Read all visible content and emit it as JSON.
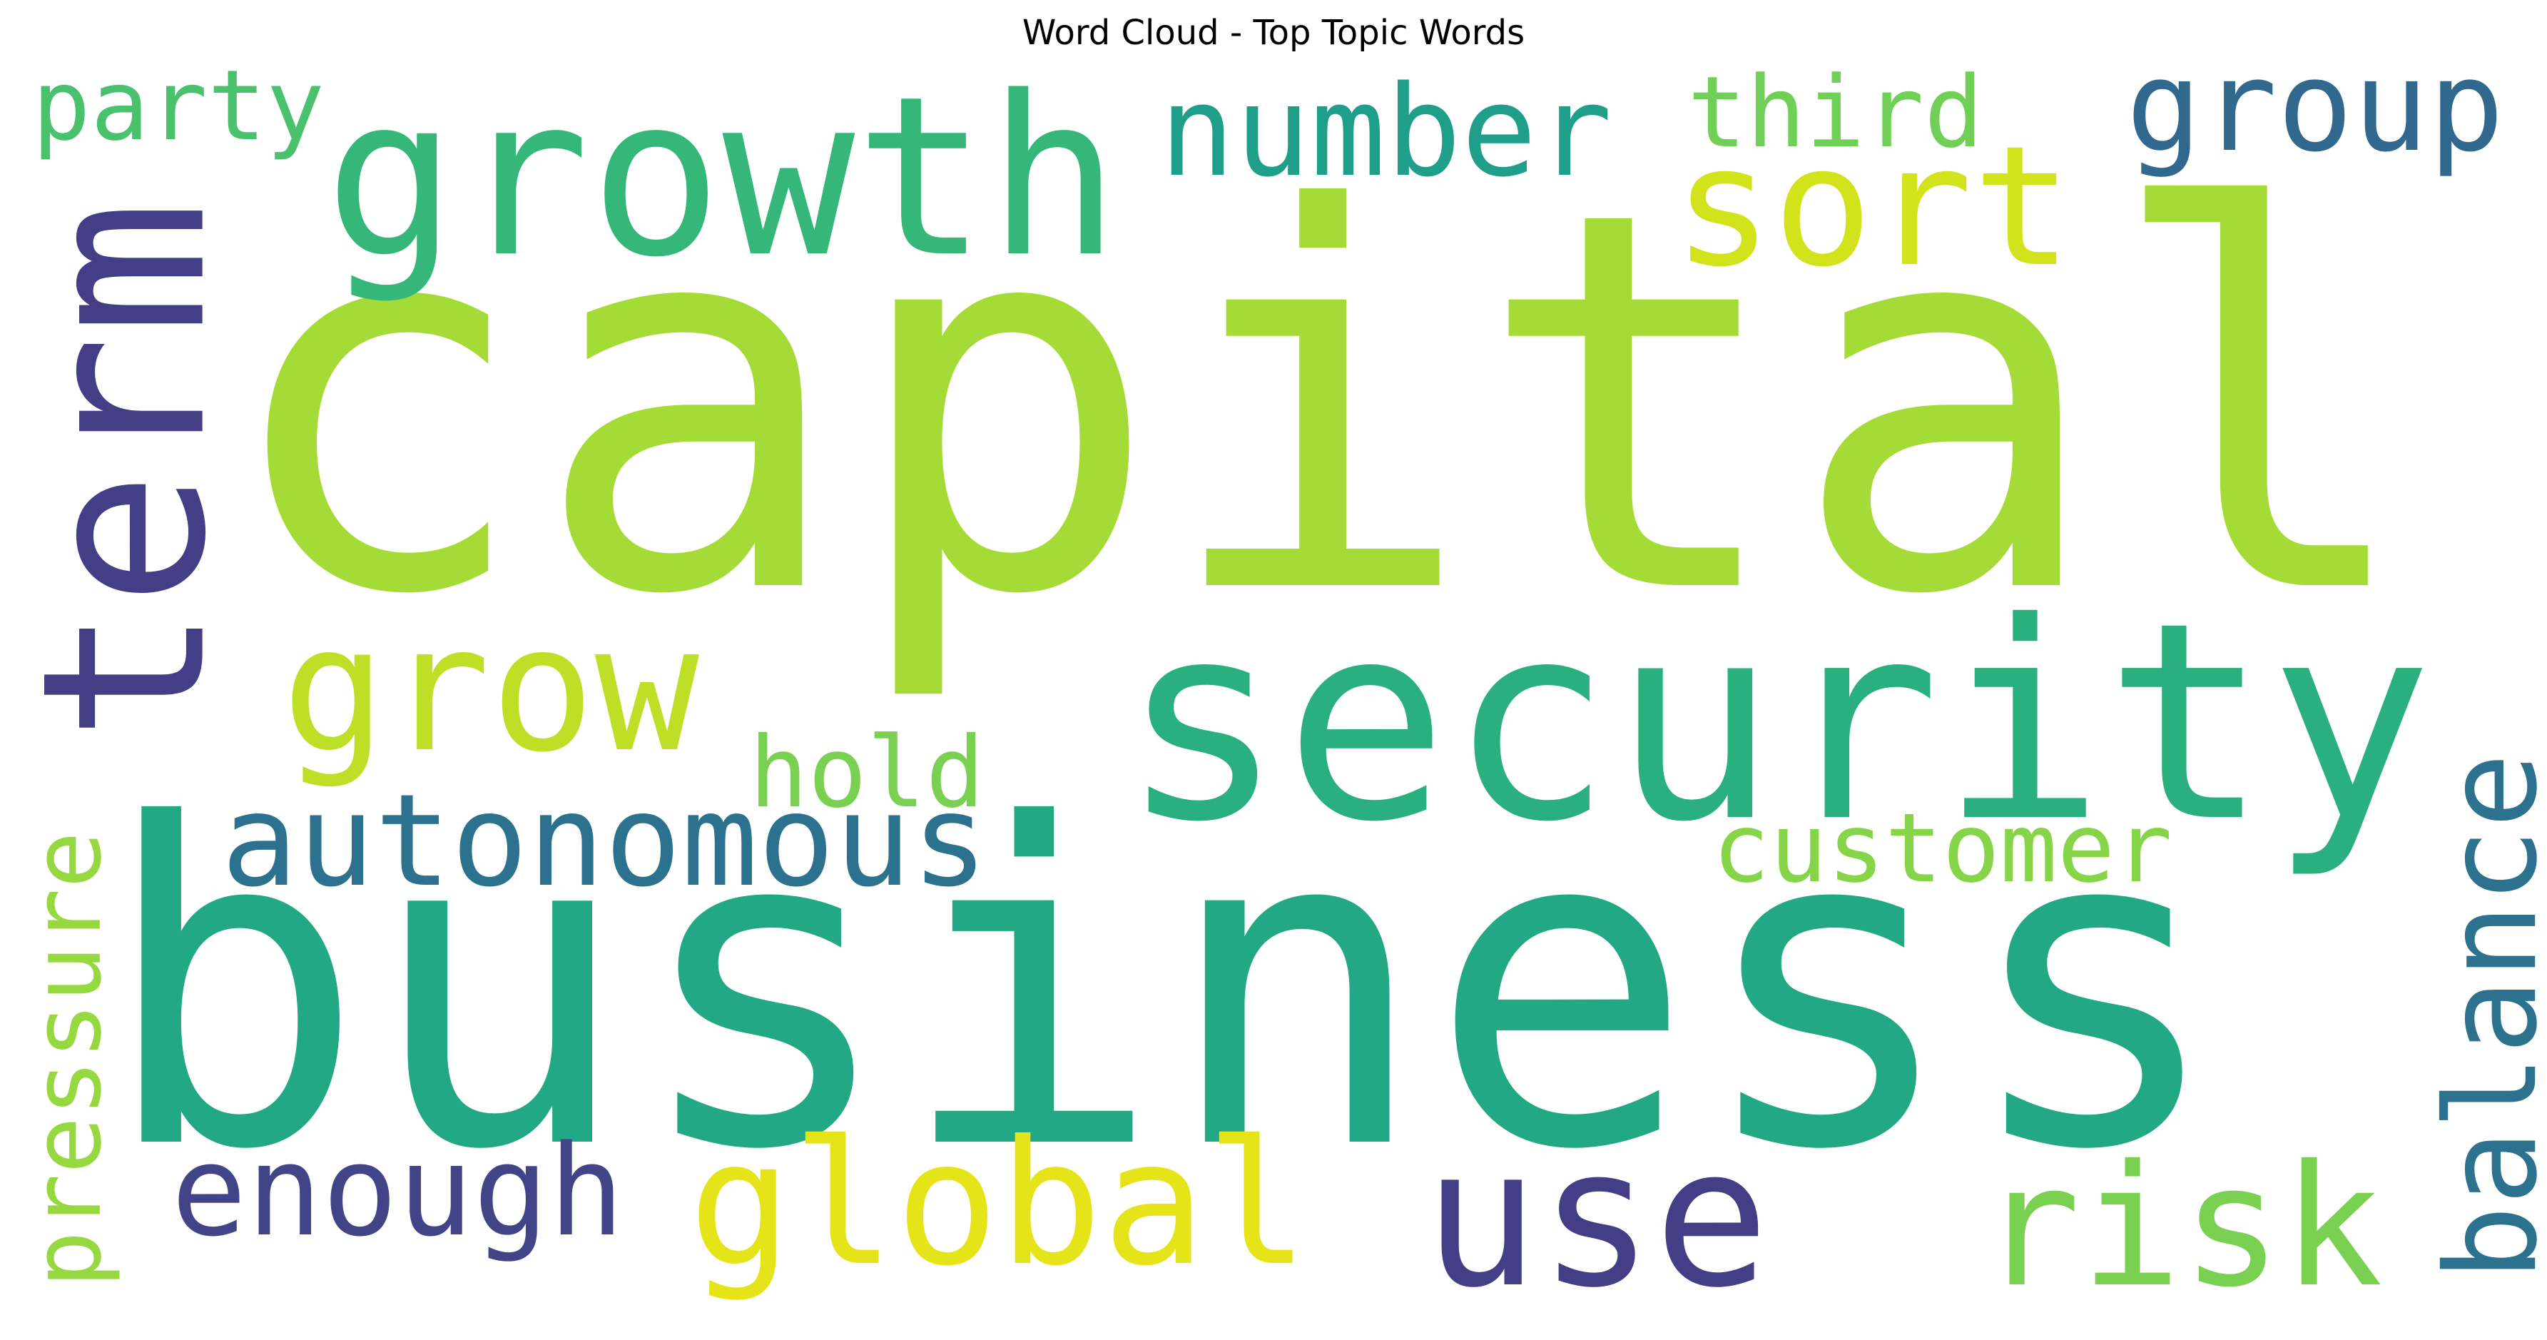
{
  "chart_data": {
    "type": "wordcloud",
    "title": "Word Cloud - Top Topic Words",
    "words": [
      {
        "text": "capital",
        "color": "#a5db36",
        "orientation": "horizontal"
      },
      {
        "text": "business",
        "color": "#22a884",
        "orientation": "horizontal"
      },
      {
        "text": "security",
        "color": "#2ab07f",
        "orientation": "horizontal"
      },
      {
        "text": "growth",
        "color": "#35b779",
        "orientation": "horizontal"
      },
      {
        "text": "term",
        "color": "#433e85",
        "orientation": "vertical"
      },
      {
        "text": "use",
        "color": "#433e85",
        "orientation": "horizontal"
      },
      {
        "text": "risk",
        "color": "#7ad151",
        "orientation": "horizontal"
      },
      {
        "text": "global",
        "color": "#e5e419",
        "orientation": "horizontal"
      },
      {
        "text": "grow",
        "color": "#bddf26",
        "orientation": "horizontal"
      },
      {
        "text": "sort",
        "color": "#d2e21b",
        "orientation": "horizontal"
      },
      {
        "text": "group",
        "color": "#31688e",
        "orientation": "horizontal"
      },
      {
        "text": "number",
        "color": "#1f9e89",
        "orientation": "horizontal"
      },
      {
        "text": "balance",
        "color": "#2c728e",
        "orientation": "vertical"
      },
      {
        "text": "autonomous",
        "color": "#2c728e",
        "orientation": "horizontal"
      },
      {
        "text": "enough",
        "color": "#414487",
        "orientation": "horizontal"
      },
      {
        "text": "pressure",
        "color": "#95d840",
        "orientation": "vertical"
      },
      {
        "text": "customer",
        "color": "#86d549",
        "orientation": "horizontal"
      },
      {
        "text": "third",
        "color": "#70cf57",
        "orientation": "horizontal"
      },
      {
        "text": "party",
        "color": "#4ac16d",
        "orientation": "horizontal"
      },
      {
        "text": "hold",
        "color": "#7ad151",
        "orientation": "horizontal"
      }
    ],
    "background": "#ffffff"
  }
}
